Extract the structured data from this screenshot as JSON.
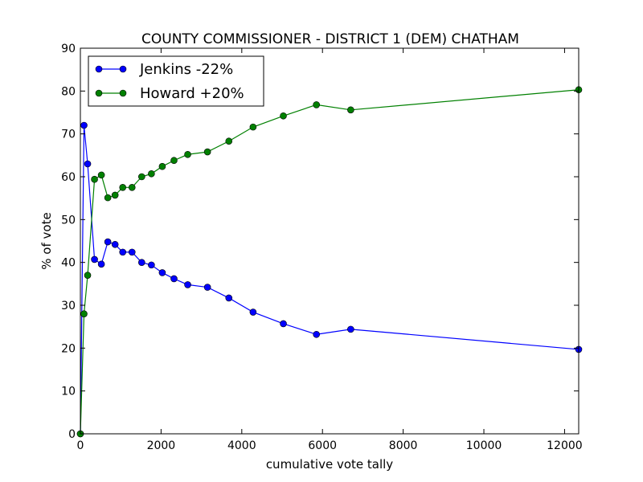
{
  "chart_data": {
    "type": "line",
    "title": "COUNTY COMMISSIONER - DISTRICT 1 (DEM) CHATHAM",
    "xlabel": "cumulative vote tally",
    "ylabel": "% of vote",
    "xlim": [
      0,
      12350
    ],
    "ylim": [
      0,
      90
    ],
    "xticks": [
      0,
      2000,
      4000,
      6000,
      8000,
      10000,
      12000
    ],
    "yticks": [
      0,
      10,
      20,
      30,
      40,
      50,
      60,
      70,
      80,
      90
    ],
    "grid": false,
    "legend_position": "top-left",
    "series": [
      {
        "name": "Jenkins -22%",
        "color": "#0000ff",
        "x": [
          0,
          90,
          180,
          350,
          520,
          680,
          860,
          1050,
          1280,
          1520,
          1760,
          2030,
          2320,
          2660,
          3150,
          3680,
          4280,
          5030,
          5850,
          6700,
          12350
        ],
        "y": [
          0,
          72,
          63,
          40.7,
          39.6,
          44.8,
          44.2,
          42.4,
          42.4,
          40,
          39.4,
          37.6,
          36.2,
          34.8,
          34.2,
          31.7,
          28.4,
          25.7,
          23.2,
          24.4,
          19.7
        ]
      },
      {
        "name": "Howard +20%",
        "color": "#008000",
        "x": [
          0,
          90,
          180,
          350,
          520,
          680,
          860,
          1050,
          1280,
          1520,
          1760,
          2030,
          2320,
          2660,
          3150,
          3680,
          4280,
          5030,
          5850,
          6700,
          12350
        ],
        "y": [
          0,
          28,
          37,
          59.4,
          60.4,
          55.1,
          55.7,
          57.5,
          57.5,
          60,
          60.7,
          62.4,
          63.8,
          65.2,
          65.8,
          68.3,
          71.6,
          74.2,
          76.8,
          75.6,
          80.3
        ]
      }
    ]
  }
}
